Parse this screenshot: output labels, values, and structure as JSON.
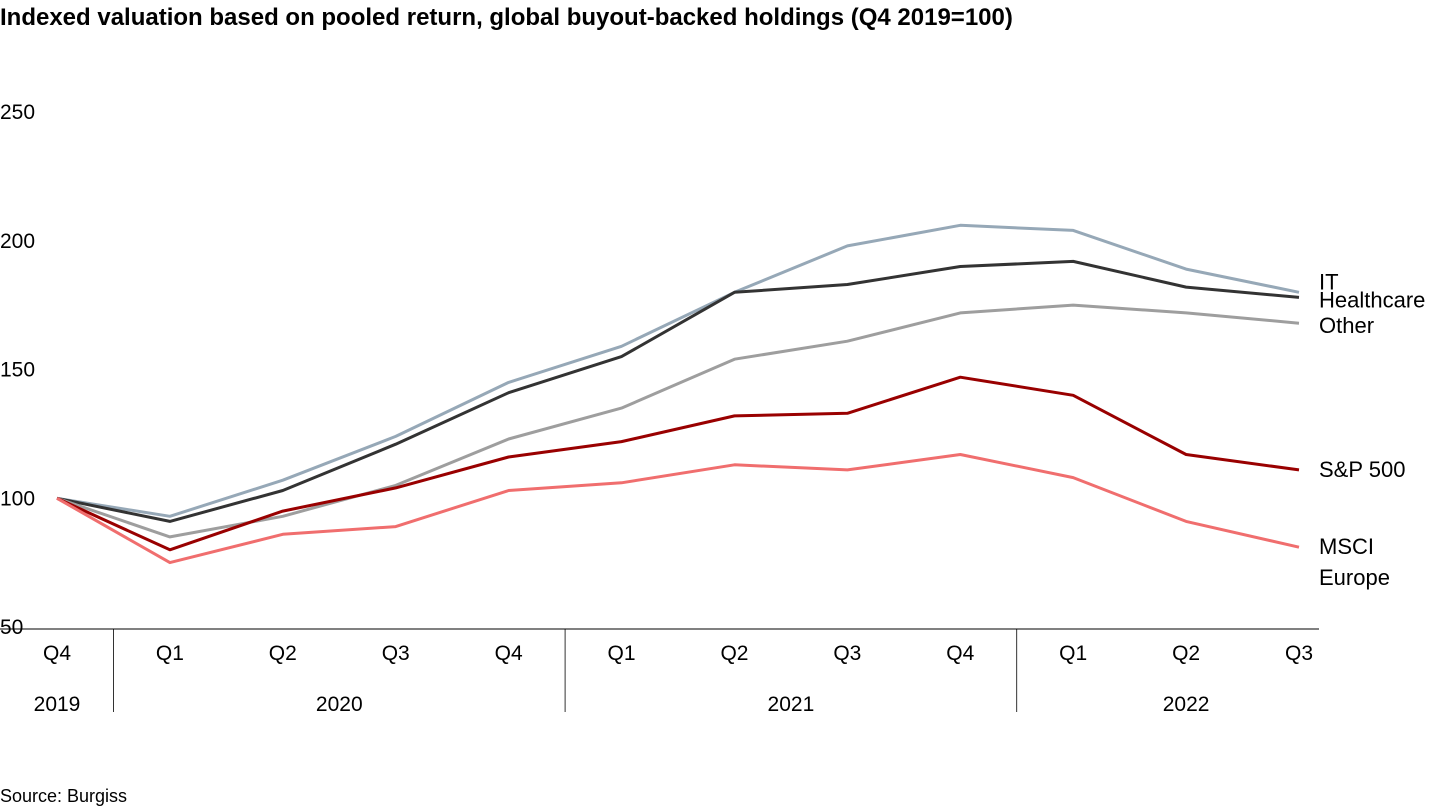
{
  "title": "Indexed valuation based on pooled return, global buyout-backed holdings (Q4 2019=100)",
  "source": "Source: Burgiss",
  "chart_data": {
    "type": "line",
    "title": "Indexed valuation based on pooled return, global buyout-backed holdings (Q4 2019=100)",
    "x": [
      "Q4",
      "Q1",
      "Q2",
      "Q3",
      "Q4",
      "Q1",
      "Q2",
      "Q3",
      "Q4",
      "Q1",
      "Q2",
      "Q3"
    ],
    "x_groups": [
      {
        "label": "2019",
        "start": 0,
        "end": 0
      },
      {
        "label": "2020",
        "start": 1,
        "end": 4
      },
      {
        "label": "2021",
        "start": 5,
        "end": 8
      },
      {
        "label": "2022",
        "start": 9,
        "end": 11
      }
    ],
    "ylim": [
      50,
      250
    ],
    "yticks": [
      50,
      100,
      150,
      200,
      250
    ],
    "grid": false,
    "legend": "direct labels at line ends",
    "series": [
      {
        "name": "IT",
        "color": "#96a8b7",
        "values": [
          100,
          93,
          107,
          124,
          145,
          159,
          180,
          198,
          206,
          204,
          189,
          180
        ]
      },
      {
        "name": "Healthcare",
        "color": "#333333",
        "values": [
          100,
          91,
          103,
          121,
          141,
          155,
          180,
          183,
          190,
          192,
          182,
          178
        ]
      },
      {
        "name": "Other",
        "color": "#9e9e9e",
        "values": [
          100,
          85,
          93,
          105,
          123,
          135,
          154,
          161,
          172,
          175,
          172,
          168
        ]
      },
      {
        "name": "S&P 500",
        "color": "#990000",
        "values": [
          100,
          80,
          95,
          104,
          116,
          122,
          132,
          133,
          147,
          140,
          117,
          111
        ]
      },
      {
        "name": "MSCI Europe",
        "label_lines": [
          "MSCI",
          "Europe"
        ],
        "color": "#f06e6e",
        "values": [
          100,
          75,
          86,
          89,
          103,
          106,
          113,
          111,
          117,
          108,
          91,
          81
        ]
      }
    ]
  }
}
